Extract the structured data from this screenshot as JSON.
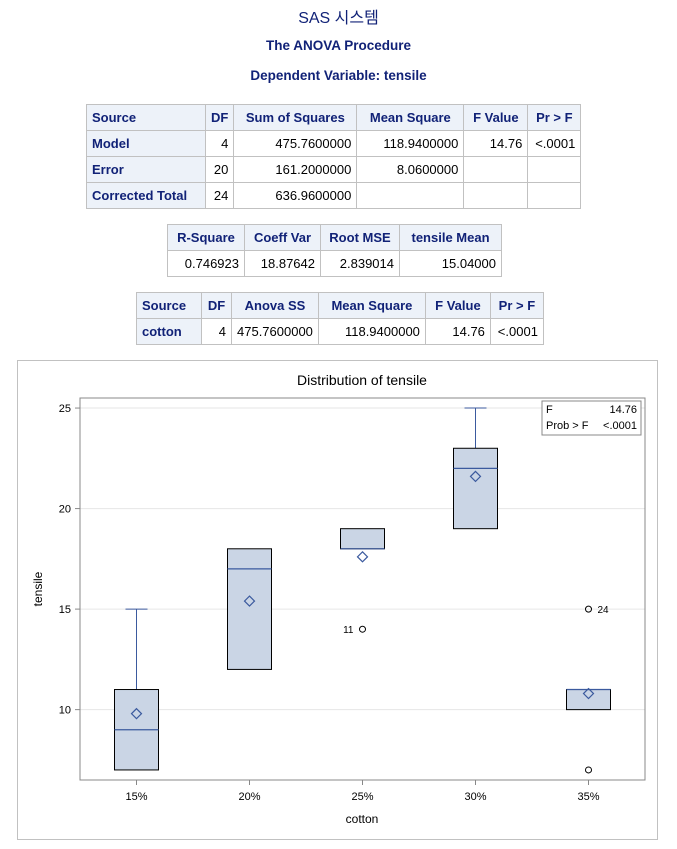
{
  "header": {
    "system": "SAS 시스템",
    "procedure": "The ANOVA Procedure",
    "dependent": "Dependent Variable: tensile"
  },
  "anova_table": {
    "columns": [
      "Source",
      "DF",
      "Sum of Squares",
      "Mean Square",
      "F Value",
      "Pr > F"
    ],
    "rows": [
      {
        "source": "Model",
        "df": "4",
        "ss": "475.7600000",
        "ms": "118.9400000",
        "f": "14.76",
        "p": "<.0001"
      },
      {
        "source": "Error",
        "df": "20",
        "ss": "161.2000000",
        "ms": "8.0600000",
        "f": "",
        "p": ""
      },
      {
        "source": "Corrected Total",
        "df": "24",
        "ss": "636.9600000",
        "ms": "",
        "f": "",
        "p": ""
      }
    ]
  },
  "fit_table": {
    "columns": [
      "R-Square",
      "Coeff Var",
      "Root MSE",
      "tensile Mean"
    ],
    "values": [
      "0.746923",
      "18.87642",
      "2.839014",
      "15.04000"
    ]
  },
  "type_table": {
    "columns": [
      "Source",
      "DF",
      "Anova SS",
      "Mean Square",
      "F Value",
      "Pr > F"
    ],
    "row": {
      "source": "cotton",
      "df": "4",
      "ss": "475.7600000",
      "ms": "118.9400000",
      "f": "14.76",
      "p": "<.0001"
    }
  },
  "chart_data": {
    "type": "box",
    "title": "Distribution of tensile",
    "xlabel": "cotton",
    "ylabel": "tensile",
    "ylim": [
      6.5,
      25.5
    ],
    "yticks": [
      10,
      15,
      20,
      25
    ],
    "categories": [
      "15%",
      "20%",
      "25%",
      "30%",
      "35%"
    ],
    "boxes": [
      {
        "category": "15%",
        "whisker_low": 7,
        "q1": 7,
        "median": 9,
        "q3": 11,
        "whisker_high": 15,
        "mean": 9.8,
        "outliers": []
      },
      {
        "category": "20%",
        "whisker_low": 12,
        "q1": 12,
        "median": 17,
        "q3": 18,
        "whisker_high": 18,
        "mean": 15.4,
        "outliers": []
      },
      {
        "category": "25%",
        "whisker_low": 18,
        "q1": 18,
        "median": 18,
        "q3": 19,
        "whisker_high": 19,
        "mean": 17.6,
        "outliers": [
          {
            "value": 14,
            "label": "11",
            "side": "left"
          }
        ]
      },
      {
        "category": "30%",
        "whisker_low": 19,
        "q1": 19,
        "median": 22,
        "q3": 23,
        "whisker_high": 25,
        "mean": 21.6,
        "outliers": []
      },
      {
        "category": "35%",
        "whisker_low": 10,
        "q1": 10,
        "median": 11,
        "q3": 11,
        "whisker_high": 11,
        "mean": 10.8,
        "outliers": [
          {
            "value": 15,
            "label": "24",
            "side": "right"
          },
          {
            "value": 7,
            "label": "",
            "side": "right"
          }
        ]
      }
    ],
    "inset": {
      "f_label": "F",
      "f_value": "14.76",
      "p_label": "Prob > F",
      "p_value": "<.0001"
    },
    "colors": {
      "box_fill": "#cad5e5",
      "box_line": "#3b5a9e",
      "mean_marker": "#3b5a9e",
      "grid": "#e6e6e6"
    }
  }
}
